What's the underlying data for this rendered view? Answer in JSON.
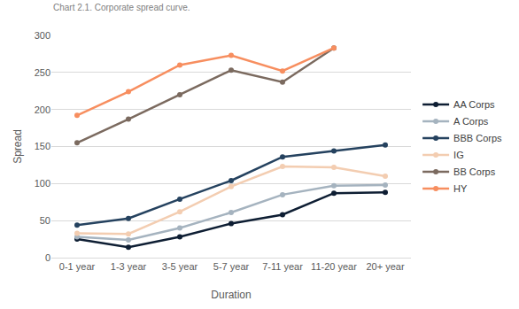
{
  "chart_data": {
    "type": "line",
    "title": "Chart 2.1. Corporate spread curve.",
    "x_label": "Duration",
    "y_label": "Spread",
    "categories": [
      "0-1 year",
      "1-3 year",
      "3-5 year",
      "5-7 year",
      "7-11 year",
      "11-20 year",
      "20+ year"
    ],
    "series": [
      {
        "name": "AA Corps",
        "color": "#0e1e33",
        "values": [
          25,
          14,
          28,
          46,
          58,
          87,
          88
        ]
      },
      {
        "name": "A Corps",
        "color": "#a5b3bf",
        "values": [
          28,
          24,
          40,
          61,
          85,
          97,
          98
        ]
      },
      {
        "name": "BBB Corps",
        "color": "#25425f",
        "values": [
          44,
          53,
          79,
          104,
          136,
          144,
          152
        ]
      },
      {
        "name": "IG",
        "color": "#f3cdb1",
        "values": [
          33,
          32,
          62,
          96,
          123,
          122,
          110
        ]
      },
      {
        "name": "BB Corps",
        "color": "#7b6a5f",
        "values": [
          155,
          187,
          220,
          253,
          237,
          283,
          null
        ]
      },
      {
        "name": "HY",
        "color": "#f78e5f",
        "values": [
          192,
          224,
          260,
          273,
          252,
          283,
          null
        ]
      }
    ],
    "ylim": [
      0,
      300
    ],
    "yticks": [
      0,
      50,
      100,
      150,
      200,
      250,
      300
    ],
    "grid": true,
    "legend": "right",
    "marker": "circle"
  }
}
